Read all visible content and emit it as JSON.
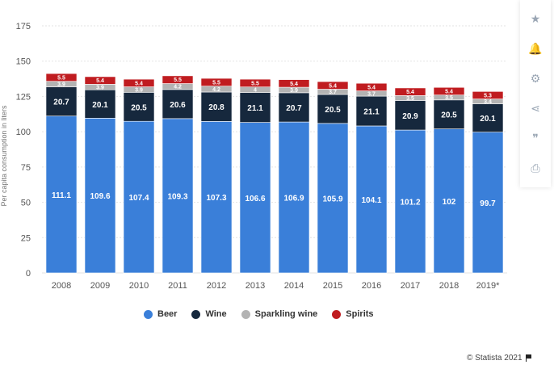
{
  "chart_data": {
    "type": "bar",
    "stacked": true,
    "categories": [
      "2008",
      "2009",
      "2010",
      "2011",
      "2012",
      "2013",
      "2014",
      "2015",
      "2016",
      "2017",
      "2018",
      "2019*"
    ],
    "ylabel": "Per capita consumption in liters",
    "ylim": [
      0,
      175
    ],
    "yticks": [
      0,
      25,
      50,
      75,
      100,
      125,
      150,
      175
    ],
    "grid": true,
    "legend_position": "bottom",
    "series": [
      {
        "name": "Beer",
        "color": "#3a7fd9",
        "values": [
          111.1,
          109.6,
          107.4,
          109.3,
          107.3,
          106.6,
          106.9,
          105.9,
          104.1,
          101.2,
          102,
          99.7
        ],
        "labels": [
          "111.1",
          "109.6",
          "107.4",
          "109.3",
          "107.3",
          "106.6",
          "106.9",
          "105.9",
          "104.1",
          "101.2",
          "102",
          "99.7"
        ]
      },
      {
        "name": "Wine",
        "color": "#16283d",
        "values": [
          20.7,
          20.1,
          20.5,
          20.6,
          20.8,
          21.1,
          20.7,
          20.5,
          21.1,
          20.9,
          20.5,
          20.1
        ],
        "labels": [
          "20.7",
          "20.1",
          "20.5",
          "20.6",
          "20.8",
          "21.1",
          "20.7",
          "20.5",
          "21.1",
          "20.9",
          "20.5",
          "20.1"
        ]
      },
      {
        "name": "Sparkling wine",
        "color": "#b3b3b3",
        "values": [
          3.9,
          3.9,
          3.9,
          4.2,
          4.2,
          4,
          3.9,
          3.7,
          3.7,
          3.5,
          3.5,
          3.4
        ],
        "labels": [
          "3.9",
          "3.9",
          "3.9",
          "4.2",
          "4.2",
          "4",
          "3.9",
          "3.7",
          "3.7",
          "3.5",
          "3.5",
          "3.4"
        ]
      },
      {
        "name": "Spirits",
        "color": "#c01c20",
        "values": [
          5.5,
          5.4,
          5.4,
          5.5,
          5.5,
          5.5,
          5.4,
          5.4,
          5.4,
          5.4,
          5.4,
          5.3
        ],
        "labels": [
          "5.5",
          "5.4",
          "5.4",
          "5.5",
          "5.5",
          "5.5",
          "5.4",
          "5.4",
          "5.4",
          "5.4",
          "5.4",
          "5.3"
        ]
      }
    ]
  },
  "legend": {
    "items": [
      {
        "label": "Beer",
        "color": "#3a7fd9"
      },
      {
        "label": "Wine",
        "color": "#16283d"
      },
      {
        "label": "Sparkling wine",
        "color": "#b3b3b3"
      },
      {
        "label": "Spirits",
        "color": "#c01c20"
      }
    ]
  },
  "credit": {
    "text": "© Statista 2021"
  },
  "sidebar": {
    "buttons": [
      {
        "name": "star-icon",
        "glyph": "★"
      },
      {
        "name": "bell-icon",
        "glyph": "🔔"
      },
      {
        "name": "gear-icon",
        "glyph": "⚙"
      },
      {
        "name": "share-icon",
        "glyph": "⋖"
      },
      {
        "name": "quote-icon",
        "glyph": "❞"
      },
      {
        "name": "print-icon",
        "glyph": "⎙"
      }
    ]
  }
}
